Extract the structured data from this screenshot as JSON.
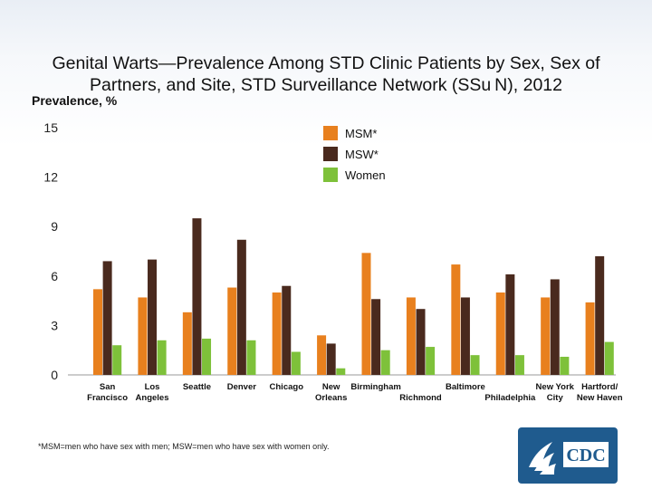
{
  "title": "Genital Warts—Prevalence Among STD Clinic Patients by Sex, Sex of Partners, and Site, STD Surveillance Network (SSu N), 2012",
  "footnote": "*MSM=men who have sex with men; MSW=men who have sex with women only.",
  "logo_text": "CDC",
  "chart_data": {
    "type": "bar",
    "title": "Genital Warts—Prevalence Among STD Clinic Patients by Sex, Sex of Partners, and Site, STD Surveillance Network (SSu N), 2012",
    "ylabel": "Prevalence, %",
    "xlabel": "",
    "ylim": [
      0,
      15
    ],
    "yticks": [
      0,
      3,
      6,
      9,
      12,
      15
    ],
    "grid": false,
    "legend_position": "top-right",
    "categories": [
      "San Francisco",
      "Los Angeles",
      "Seattle",
      "Denver",
      "Chicago",
      "New Orleans",
      "Birmingham",
      "Richmond",
      "Baltimore",
      "Philadelphia",
      "New York City",
      "Hartford/ New Haven"
    ],
    "category_lines": [
      [
        "San",
        "Francisco"
      ],
      [
        "Los",
        "Angeles"
      ],
      [
        "Seattle"
      ],
      [
        "Denver"
      ],
      [
        "Chicago"
      ],
      [
        "New",
        "Orleans"
      ],
      [
        "Birmingham"
      ],
      [
        "Richmond"
      ],
      [
        "Baltimore"
      ],
      [
        "Philadelphia"
      ],
      [
        "New York",
        "City"
      ],
      [
        "Hartford/",
        "New Haven"
      ]
    ],
    "series": [
      {
        "name": "MSM*",
        "color": "#e8801e",
        "values": [
          5.2,
          4.7,
          3.8,
          5.3,
          5.0,
          2.4,
          7.4,
          4.7,
          6.7,
          5.0,
          4.7,
          4.4
        ]
      },
      {
        "name": "MSW*",
        "color": "#4a2a1e",
        "values": [
          6.9,
          7.0,
          9.5,
          8.2,
          5.4,
          1.9,
          4.6,
          4.0,
          4.7,
          6.1,
          5.8,
          7.2
        ]
      },
      {
        "name": "Women",
        "color": "#7ec13a",
        "values": [
          1.8,
          2.1,
          2.2,
          2.1,
          1.4,
          0.4,
          1.5,
          1.7,
          1.2,
          1.2,
          1.1,
          2.0
        ]
      }
    ]
  }
}
